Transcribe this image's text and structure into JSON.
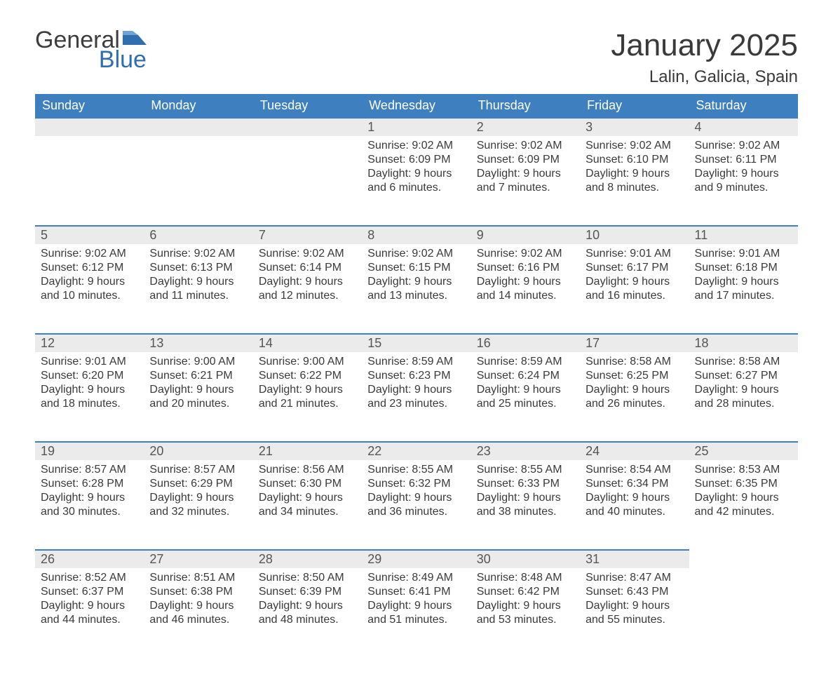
{
  "logo": {
    "word1": "General",
    "word2": "Blue",
    "text_color": "#3d3d3d",
    "blue_color": "#2f6fb0"
  },
  "title": "January 2025",
  "location": "Lalin, Galicia, Spain",
  "colors": {
    "header_bg": "#3e80bf",
    "header_text": "#ffffff",
    "daynum_bg": "#ebebeb",
    "border_top": "#3e80bf",
    "body_text": "#3a3a3a"
  },
  "day_headers": [
    "Sunday",
    "Monday",
    "Tuesday",
    "Wednesday",
    "Thursday",
    "Friday",
    "Saturday"
  ],
  "weeks": [
    [
      null,
      null,
      null,
      {
        "n": "1",
        "sunrise": "Sunrise: 9:02 AM",
        "sunset": "Sunset: 6:09 PM",
        "d1": "Daylight: 9 hours",
        "d2": "and 6 minutes."
      },
      {
        "n": "2",
        "sunrise": "Sunrise: 9:02 AM",
        "sunset": "Sunset: 6:09 PM",
        "d1": "Daylight: 9 hours",
        "d2": "and 7 minutes."
      },
      {
        "n": "3",
        "sunrise": "Sunrise: 9:02 AM",
        "sunset": "Sunset: 6:10 PM",
        "d1": "Daylight: 9 hours",
        "d2": "and 8 minutes."
      },
      {
        "n": "4",
        "sunrise": "Sunrise: 9:02 AM",
        "sunset": "Sunset: 6:11 PM",
        "d1": "Daylight: 9 hours",
        "d2": "and 9 minutes."
      }
    ],
    [
      {
        "n": "5",
        "sunrise": "Sunrise: 9:02 AM",
        "sunset": "Sunset: 6:12 PM",
        "d1": "Daylight: 9 hours",
        "d2": "and 10 minutes."
      },
      {
        "n": "6",
        "sunrise": "Sunrise: 9:02 AM",
        "sunset": "Sunset: 6:13 PM",
        "d1": "Daylight: 9 hours",
        "d2": "and 11 minutes."
      },
      {
        "n": "7",
        "sunrise": "Sunrise: 9:02 AM",
        "sunset": "Sunset: 6:14 PM",
        "d1": "Daylight: 9 hours",
        "d2": "and 12 minutes."
      },
      {
        "n": "8",
        "sunrise": "Sunrise: 9:02 AM",
        "sunset": "Sunset: 6:15 PM",
        "d1": "Daylight: 9 hours",
        "d2": "and 13 minutes."
      },
      {
        "n": "9",
        "sunrise": "Sunrise: 9:02 AM",
        "sunset": "Sunset: 6:16 PM",
        "d1": "Daylight: 9 hours",
        "d2": "and 14 minutes."
      },
      {
        "n": "10",
        "sunrise": "Sunrise: 9:01 AM",
        "sunset": "Sunset: 6:17 PM",
        "d1": "Daylight: 9 hours",
        "d2": "and 16 minutes."
      },
      {
        "n": "11",
        "sunrise": "Sunrise: 9:01 AM",
        "sunset": "Sunset: 6:18 PM",
        "d1": "Daylight: 9 hours",
        "d2": "and 17 minutes."
      }
    ],
    [
      {
        "n": "12",
        "sunrise": "Sunrise: 9:01 AM",
        "sunset": "Sunset: 6:20 PM",
        "d1": "Daylight: 9 hours",
        "d2": "and 18 minutes."
      },
      {
        "n": "13",
        "sunrise": "Sunrise: 9:00 AM",
        "sunset": "Sunset: 6:21 PM",
        "d1": "Daylight: 9 hours",
        "d2": "and 20 minutes."
      },
      {
        "n": "14",
        "sunrise": "Sunrise: 9:00 AM",
        "sunset": "Sunset: 6:22 PM",
        "d1": "Daylight: 9 hours",
        "d2": "and 21 minutes."
      },
      {
        "n": "15",
        "sunrise": "Sunrise: 8:59 AM",
        "sunset": "Sunset: 6:23 PM",
        "d1": "Daylight: 9 hours",
        "d2": "and 23 minutes."
      },
      {
        "n": "16",
        "sunrise": "Sunrise: 8:59 AM",
        "sunset": "Sunset: 6:24 PM",
        "d1": "Daylight: 9 hours",
        "d2": "and 25 minutes."
      },
      {
        "n": "17",
        "sunrise": "Sunrise: 8:58 AM",
        "sunset": "Sunset: 6:25 PM",
        "d1": "Daylight: 9 hours",
        "d2": "and 26 minutes."
      },
      {
        "n": "18",
        "sunrise": "Sunrise: 8:58 AM",
        "sunset": "Sunset: 6:27 PM",
        "d1": "Daylight: 9 hours",
        "d2": "and 28 minutes."
      }
    ],
    [
      {
        "n": "19",
        "sunrise": "Sunrise: 8:57 AM",
        "sunset": "Sunset: 6:28 PM",
        "d1": "Daylight: 9 hours",
        "d2": "and 30 minutes."
      },
      {
        "n": "20",
        "sunrise": "Sunrise: 8:57 AM",
        "sunset": "Sunset: 6:29 PM",
        "d1": "Daylight: 9 hours",
        "d2": "and 32 minutes."
      },
      {
        "n": "21",
        "sunrise": "Sunrise: 8:56 AM",
        "sunset": "Sunset: 6:30 PM",
        "d1": "Daylight: 9 hours",
        "d2": "and 34 minutes."
      },
      {
        "n": "22",
        "sunrise": "Sunrise: 8:55 AM",
        "sunset": "Sunset: 6:32 PM",
        "d1": "Daylight: 9 hours",
        "d2": "and 36 minutes."
      },
      {
        "n": "23",
        "sunrise": "Sunrise: 8:55 AM",
        "sunset": "Sunset: 6:33 PM",
        "d1": "Daylight: 9 hours",
        "d2": "and 38 minutes."
      },
      {
        "n": "24",
        "sunrise": "Sunrise: 8:54 AM",
        "sunset": "Sunset: 6:34 PM",
        "d1": "Daylight: 9 hours",
        "d2": "and 40 minutes."
      },
      {
        "n": "25",
        "sunrise": "Sunrise: 8:53 AM",
        "sunset": "Sunset: 6:35 PM",
        "d1": "Daylight: 9 hours",
        "d2": "and 42 minutes."
      }
    ],
    [
      {
        "n": "26",
        "sunrise": "Sunrise: 8:52 AM",
        "sunset": "Sunset: 6:37 PM",
        "d1": "Daylight: 9 hours",
        "d2": "and 44 minutes."
      },
      {
        "n": "27",
        "sunrise": "Sunrise: 8:51 AM",
        "sunset": "Sunset: 6:38 PM",
        "d1": "Daylight: 9 hours",
        "d2": "and 46 minutes."
      },
      {
        "n": "28",
        "sunrise": "Sunrise: 8:50 AM",
        "sunset": "Sunset: 6:39 PM",
        "d1": "Daylight: 9 hours",
        "d2": "and 48 minutes."
      },
      {
        "n": "29",
        "sunrise": "Sunrise: 8:49 AM",
        "sunset": "Sunset: 6:41 PM",
        "d1": "Daylight: 9 hours",
        "d2": "and 51 minutes."
      },
      {
        "n": "30",
        "sunrise": "Sunrise: 8:48 AM",
        "sunset": "Sunset: 6:42 PM",
        "d1": "Daylight: 9 hours",
        "d2": "and 53 minutes."
      },
      {
        "n": "31",
        "sunrise": "Sunrise: 8:47 AM",
        "sunset": "Sunset: 6:43 PM",
        "d1": "Daylight: 9 hours",
        "d2": "and 55 minutes."
      },
      null
    ]
  ]
}
